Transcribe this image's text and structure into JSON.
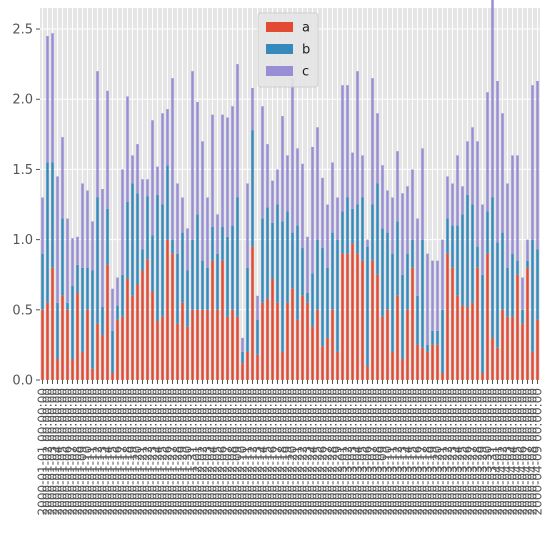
{
  "chart_data": {
    "type": "bar",
    "stacked": true,
    "title": "",
    "xlabel": "",
    "ylabel": "",
    "ylim": [
      0,
      2.65
    ],
    "yticks": [
      0.0,
      0.5,
      1.0,
      1.5,
      2.0,
      2.5
    ],
    "ytick_labels": [
      "0.0",
      "0.5",
      "1.0",
      "1.5",
      "2.0",
      "2.5"
    ],
    "grid": true,
    "legend": {
      "placement": "top-center",
      "entries": [
        "a",
        "b",
        "c"
      ]
    },
    "colors": {
      "a": "#E24A33",
      "b": "#348ABD",
      "c": "#988ED5",
      "background": "#E5E5E5",
      "grid": "#FFFFFF"
    },
    "categories": [
      "2000-01-01 00:00:00",
      "2000-01-02 00:00:00",
      "2000-01-03 00:00:00",
      "2000-01-04 00:00:00",
      "2000-01-05 00:00:00",
      "2000-01-06 00:00:00",
      "2000-01-07 00:00:00",
      "2000-01-08 00:00:00",
      "2000-01-09 00:00:00",
      "2000-01-10 00:00:00",
      "2000-01-11 00:00:00",
      "2000-01-12 00:00:00",
      "2000-01-13 00:00:00",
      "2000-01-14 00:00:00",
      "2000-01-15 00:00:00",
      "2000-01-16 00:00:00",
      "2000-01-17 00:00:00",
      "2000-01-18 00:00:00",
      "2000-01-19 00:00:00",
      "2000-01-20 00:00:00",
      "2000-01-21 00:00:00",
      "2000-01-22 00:00:00",
      "2000-01-23 00:00:00",
      "2000-01-24 00:00:00",
      "2000-01-25 00:00:00",
      "2000-01-26 00:00:00",
      "2000-01-27 00:00:00",
      "2000-01-28 00:00:00",
      "2000-01-29 00:00:00",
      "2000-01-30 00:00:00",
      "2000-01-31 00:00:00",
      "2000-02-01 00:00:00",
      "2000-02-02 00:00:00",
      "2000-02-03 00:00:00",
      "2000-02-04 00:00:00",
      "2000-02-05 00:00:00",
      "2000-02-06 00:00:00",
      "2000-02-07 00:00:00",
      "2000-02-08 00:00:00",
      "2000-02-09 00:00:00",
      "2000-02-10 00:00:00",
      "2000-02-11 00:00:00",
      "2000-02-12 00:00:00",
      "2000-02-13 00:00:00",
      "2000-02-14 00:00:00",
      "2000-02-15 00:00:00",
      "2000-02-16 00:00:00",
      "2000-02-17 00:00:00",
      "2000-02-18 00:00:00",
      "2000-02-19 00:00:00",
      "2000-02-20 00:00:00",
      "2000-02-21 00:00:00",
      "2000-02-22 00:00:00",
      "2000-02-23 00:00:00",
      "2000-02-24 00:00:00",
      "2000-02-25 00:00:00",
      "2000-02-26 00:00:00",
      "2000-02-27 00:00:00",
      "2000-02-28 00:00:00",
      "2000-02-29 00:00:00",
      "2000-03-01 00:00:00",
      "2000-03-02 00:00:00",
      "2000-03-03 00:00:00",
      "2000-03-04 00:00:00",
      "2000-03-05 00:00:00",
      "2000-03-06 00:00:00",
      "2000-03-07 00:00:00",
      "2000-03-08 00:00:00",
      "2000-03-09 00:00:00",
      "2000-03-10 00:00:00",
      "2000-03-11 00:00:00",
      "2000-03-12 00:00:00",
      "2000-03-13 00:00:00",
      "2000-03-14 00:00:00",
      "2000-03-15 00:00:00",
      "2000-03-16 00:00:00",
      "2000-03-17 00:00:00",
      "2000-03-18 00:00:00",
      "2000-03-19 00:00:00",
      "2000-03-20 00:00:00",
      "2000-03-21 00:00:00",
      "2000-03-22 00:00:00",
      "2000-03-23 00:00:00",
      "2000-03-24 00:00:00",
      "2000-03-25 00:00:00",
      "2000-03-26 00:00:00",
      "2000-03-27 00:00:00",
      "2000-03-28 00:00:00",
      "2000-03-29 00:00:00",
      "2000-03-30 00:00:00",
      "2000-03-31 00:00:00",
      "2000-04-01 00:00:00",
      "2000-04-02 00:00:00",
      "2000-04-03 00:00:00",
      "2000-04-04 00:00:00",
      "2000-04-05 00:00:00",
      "2000-04-06 00:00:00",
      "2000-04-07 00:00:00",
      "2000-04-08 00:00:00",
      "2000-04-09 00:00:00"
    ],
    "series": [
      {
        "name": "a",
        "values": [
          0.5,
          0.55,
          0.8,
          0.15,
          0.6,
          0.5,
          0.15,
          0.62,
          0.2,
          0.5,
          0.08,
          0.4,
          0.32,
          0.82,
          0.05,
          0.43,
          0.45,
          0.72,
          0.6,
          0.68,
          0.78,
          0.86,
          0.63,
          0.42,
          0.45,
          1.0,
          0.9,
          0.4,
          0.55,
          0.38,
          0.5,
          0.5,
          0.5,
          0.5,
          0.85,
          0.5,
          0.85,
          0.45,
          0.5,
          0.45,
          0.12,
          0.2,
          0.95,
          0.18,
          0.55,
          0.58,
          0.72,
          0.55,
          0.2,
          0.55,
          0.65,
          0.43,
          0.6,
          0.55,
          0.38,
          0.5,
          0.24,
          0.3,
          0.5,
          0.2,
          0.9,
          0.9,
          0.97,
          0.9,
          0.85,
          0.1,
          0.85,
          0.75,
          0.45,
          0.5,
          0.2,
          0.6,
          0.15,
          0.5,
          0.8,
          0.25,
          0.23,
          0.2,
          0.25,
          0.25,
          0.05,
          0.9,
          0.8,
          0.6,
          0.53,
          0.52,
          0.55,
          0.8,
          0.05,
          0.9,
          0.3,
          0.23,
          0.5,
          0.45,
          0.45,
          0.75,
          0.4,
          0.8,
          0.2,
          0.43
        ]
      },
      {
        "name": "b",
        "values": [
          0.4,
          1.0,
          0.75,
          0.4,
          0.55,
          0.05,
          0.52,
          0.2,
          0.6,
          0.3,
          0.7,
          0.9,
          0.2,
          0.4,
          0.3,
          0.1,
          0.3,
          0.55,
          0.8,
          0.65,
          0.15,
          0.45,
          0.4,
          0.9,
          0.8,
          0.53,
          0.1,
          0.5,
          0.5,
          0.4,
          0.5,
          0.68,
          0.35,
          0.3,
          0.24,
          0.4,
          0.24,
          0.57,
          0.6,
          0.85,
          0.08,
          0.6,
          0.83,
          0.25,
          0.6,
          0.65,
          0.4,
          0.7,
          0.93,
          0.65,
          0.4,
          0.67,
          0.34,
          0.07,
          0.38,
          0.5,
          0.7,
          0.5,
          0.55,
          0.8,
          0.3,
          0.4,
          0.25,
          0.35,
          0.45,
          0.85,
          0.4,
          0.65,
          0.63,
          0.55,
          0.7,
          0.53,
          0.6,
          0.4,
          0.2,
          0.35,
          0.77,
          0.05,
          0.1,
          0.1,
          0.45,
          0.25,
          0.3,
          0.5,
          0.65,
          0.8,
          0.7,
          0.15,
          0.7,
          0.3,
          1.0,
          0.75,
          0.55,
          0.35,
          0.45,
          0.1,
          0.1,
          0.05,
          0.8,
          0.5
        ]
      },
      {
        "name": "c",
        "values": [
          0.4,
          0.9,
          0.92,
          0.9,
          0.58,
          0.6,
          0.34,
          0.2,
          0.6,
          0.55,
          0.35,
          0.9,
          0.84,
          0.84,
          0.3,
          0.2,
          0.75,
          0.75,
          0.2,
          0.35,
          0.5,
          0.12,
          0.82,
          0.2,
          0.65,
          0.4,
          1.15,
          0.5,
          0.25,
          0.3,
          1.2,
          0.8,
          0.85,
          0.5,
          0.8,
          0.28,
          0.8,
          0.85,
          0.85,
          0.95,
          0.1,
          0.6,
          0.3,
          0.17,
          0.8,
          0.45,
          0.3,
          0.25,
          0.75,
          0.4,
          1.1,
          0.55,
          0.6,
          0.4,
          0.9,
          0.8,
          0.5,
          0.45,
          0.5,
          0.3,
          0.9,
          0.8,
          0.4,
          0.95,
          0.3,
          0.05,
          0.9,
          0.5,
          0.45,
          0.3,
          0.4,
          0.5,
          0.58,
          0.48,
          0.5,
          0.55,
          0.65,
          0.65,
          0.5,
          0.5,
          0.5,
          0.3,
          0.3,
          0.5,
          0.2,
          0.38,
          0.55,
          0.75,
          0.5,
          0.85,
          1.45,
          1.15,
          0.85,
          0.6,
          0.7,
          0.75,
          0.23,
          0.15,
          1.1,
          1.2
        ]
      }
    ]
  }
}
